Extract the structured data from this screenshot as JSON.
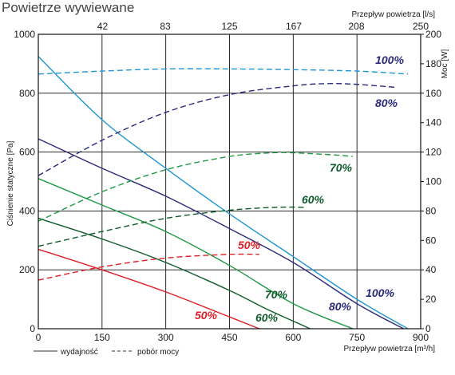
{
  "chart_data": {
    "type": "line",
    "title": "Powietrze wywiewane",
    "x": {
      "label": "Przepływ powietrza [m³/h]",
      "ticks": [
        0,
        150,
        300,
        450,
        600,
        750,
        900
      ],
      "range": [
        0,
        900
      ]
    },
    "x_top": {
      "label": "Przepływ powietrza [l/s]",
      "ticks": [
        42,
        83,
        125,
        167,
        208,
        250
      ],
      "range": [
        0,
        250
      ]
    },
    "y_left": {
      "label": "Ciśnienie statyczne [Pa]",
      "ticks": [
        0,
        200,
        400,
        600,
        800,
        1000
      ],
      "range": [
        0,
        1000
      ]
    },
    "y_right": {
      "label": "Moc [W]",
      "ticks": [
        0,
        20,
        40,
        60,
        80,
        100,
        120,
        140,
        160,
        180,
        200
      ],
      "range": [
        0,
        200
      ]
    },
    "grid": true,
    "legend": {
      "position": "bottom-left",
      "items": [
        {
          "label": "wydajność",
          "style": "solid"
        },
        {
          "label": "pobór mocy",
          "style": "dashed"
        }
      ]
    },
    "series": [
      {
        "name": "100%",
        "kind": "wydajność",
        "axis": "left",
        "color": "#1e96d2",
        "x": [
          0,
          150,
          300,
          450,
          600,
          750,
          870
        ],
        "y": [
          925,
          710,
          545,
          390,
          245,
          100,
          0
        ]
      },
      {
        "name": "80%",
        "kind": "wydajność",
        "axis": "left",
        "color": "#2a2a7a",
        "x": [
          0,
          150,
          300,
          450,
          600,
          750,
          860
        ],
        "y": [
          645,
          545,
          450,
          340,
          225,
          85,
          0
        ]
      },
      {
        "name": "70%",
        "kind": "wydajność",
        "axis": "left",
        "color": "#1f9a45",
        "x": [
          0,
          150,
          300,
          450,
          600,
          740
        ],
        "y": [
          510,
          420,
          330,
          215,
          85,
          0
        ]
      },
      {
        "name": "60%",
        "kind": "wydajność",
        "axis": "left",
        "color": "#0f5a2a",
        "x": [
          0,
          150,
          300,
          450,
          540,
          640
        ],
        "y": [
          375,
          305,
          225,
          130,
          65,
          0
        ]
      },
      {
        "name": "50%",
        "kind": "wydajność",
        "axis": "left",
        "color": "#e01e26",
        "x": [
          0,
          150,
          300,
          450,
          520
        ],
        "y": [
          270,
          200,
          125,
          40,
          0
        ]
      },
      {
        "name": "100%",
        "kind": "pobór mocy",
        "axis": "right",
        "color": "#1e96d2",
        "x": [
          0,
          150,
          300,
          450,
          600,
          750,
          870
        ],
        "y": [
          173,
          175,
          176.5,
          176.5,
          176,
          175,
          173
        ]
      },
      {
        "name": "80%",
        "kind": "pobór mocy",
        "axis": "right",
        "color": "#2a2a7a",
        "x": [
          0,
          150,
          300,
          450,
          600,
          680,
          750,
          840
        ],
        "y": [
          104,
          128,
          147,
          159,
          165,
          166.5,
          166,
          164
        ]
      },
      {
        "name": "70%",
        "kind": "pobór mocy",
        "axis": "right",
        "color": "#1f9a45",
        "x": [
          0,
          150,
          300,
          450,
          550,
          600,
          700,
          740
        ],
        "y": [
          73,
          93,
          108,
          117,
          119.5,
          119.5,
          118,
          117
        ]
      },
      {
        "name": "60%",
        "kind": "pobór mocy",
        "axis": "right",
        "color": "#0f5a2a",
        "x": [
          0,
          150,
          300,
          450,
          560,
          630
        ],
        "y": [
          56,
          66,
          75,
          80.5,
          82.5,
          82.5
        ]
      },
      {
        "name": "50%",
        "kind": "pobór mocy",
        "axis": "right",
        "color": "#e01e26",
        "x": [
          0,
          150,
          300,
          450,
          520
        ],
        "y": [
          33,
          42,
          48,
          50.5,
          50.5
        ]
      }
    ],
    "annotations": [
      {
        "text": "100%",
        "color": "#2a2a7a"
      },
      {
        "text": "80%",
        "color": "#2a2a7a"
      },
      {
        "text": "70%",
        "color": "#0f5a2a"
      },
      {
        "text": "60%",
        "color": "#0f5a2a"
      },
      {
        "text": "50%",
        "color": "#e01e26"
      },
      {
        "text": "100%",
        "color": "#2a2a7a"
      },
      {
        "text": "80%",
        "color": "#2a2a7a"
      },
      {
        "text": "70%",
        "color": "#0f5a2a"
      },
      {
        "text": "60%",
        "color": "#0f5a2a"
      },
      {
        "text": "50%",
        "color": "#e01e26"
      }
    ]
  }
}
